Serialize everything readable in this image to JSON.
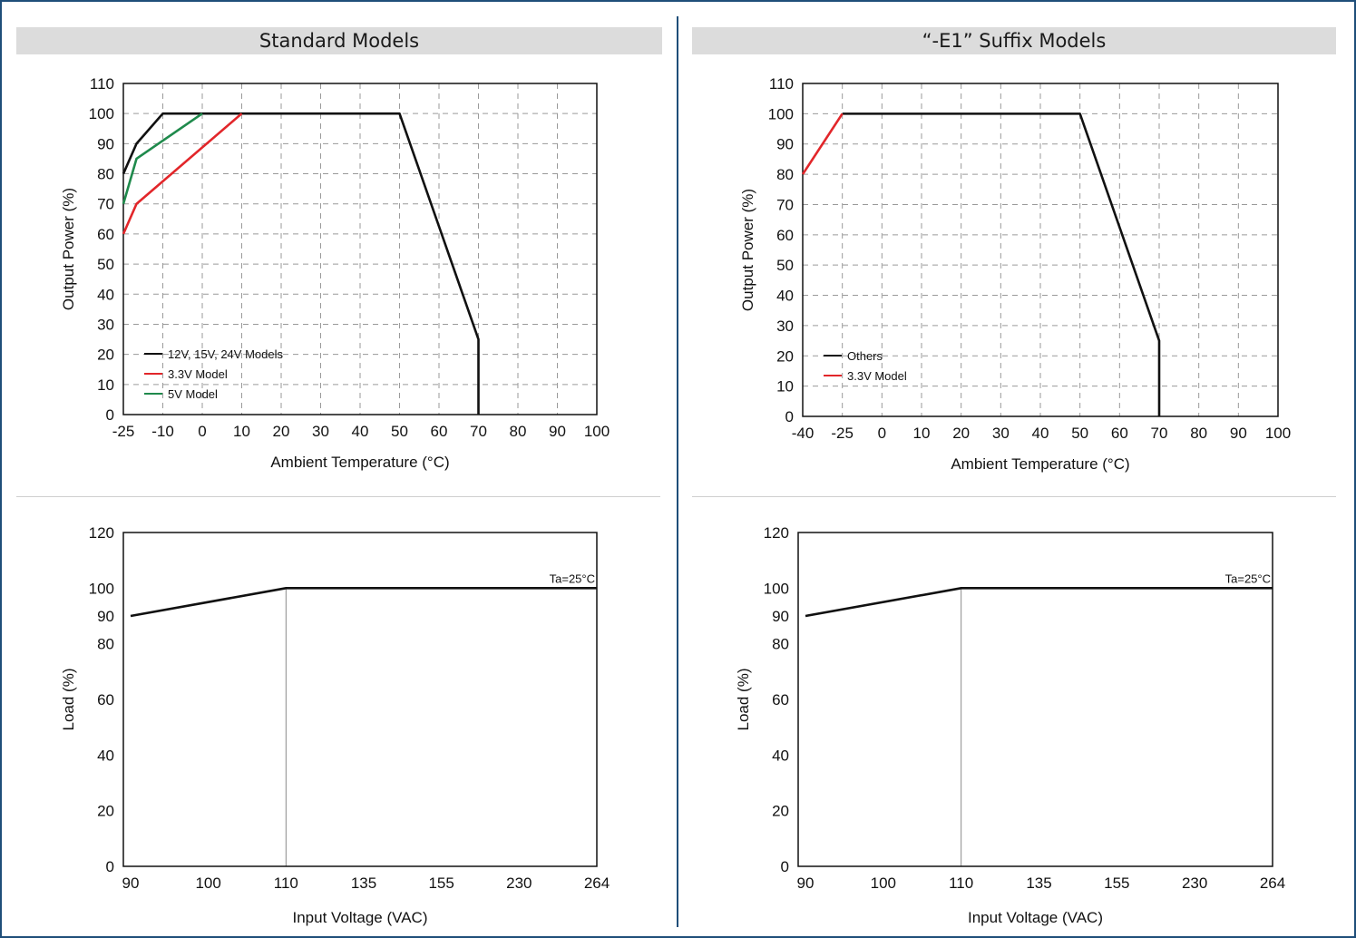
{
  "panels": {
    "left_title": "Standard Models",
    "right_title": "“-E1” Suffix Models"
  },
  "colors": {
    "black": "#111111",
    "red": "#e2262a",
    "green": "#1f8a4c",
    "frame": "#1f4e79",
    "grid": "#9a9a9a"
  },
  "chart_data": [
    {
      "type": "line",
      "title": "",
      "xlabel": "Ambient Temperature (°C)",
      "ylabel": "Output Power (%)",
      "x_ticks": [
        -25,
        -10,
        0,
        10,
        20,
        30,
        40,
        50,
        60,
        70,
        80,
        90,
        100
      ],
      "x_tick_labels": [
        "-25",
        "-10",
        "0",
        "10",
        "20",
        "30",
        "40",
        "50",
        "60",
        "70",
        "80",
        "90",
        "100"
      ],
      "y_ticks": [
        0,
        10,
        20,
        30,
        40,
        50,
        60,
        70,
        80,
        90,
        100,
        110
      ],
      "y_tick_labels": [
        "0",
        "10",
        "20",
        "30",
        "40",
        "50",
        "60",
        "70",
        "80",
        "90",
        "100",
        "110"
      ],
      "xlim": [
        -25,
        100
      ],
      "ylim": [
        0,
        110
      ],
      "grid": true,
      "legend_position": "bottom-left",
      "series": [
        {
          "name": "12V, 15V, 24V Models",
          "color": "#111111",
          "points": [
            [
              -25,
              80
            ],
            [
              -20,
              90
            ],
            [
              -10,
              100
            ],
            [
              50,
              100
            ],
            [
              70,
              25
            ],
            [
              70,
              0
            ]
          ]
        },
        {
          "name": "3.3V Model",
          "color": "#e2262a",
          "points": [
            [
              -25,
              60
            ],
            [
              -20,
              70
            ],
            [
              10,
              100
            ]
          ]
        },
        {
          "name": "5V Model",
          "color": "#1f8a4c",
          "points": [
            [
              -25,
              70
            ],
            [
              -20,
              85
            ],
            [
              0,
              100
            ]
          ]
        }
      ]
    },
    {
      "type": "line",
      "title": "",
      "xlabel": "Ambient Temperature (°C)",
      "ylabel": "Output Power (%)",
      "x_ticks": [
        -40,
        -25,
        0,
        10,
        20,
        30,
        40,
        50,
        60,
        70,
        80,
        90,
        100
      ],
      "x_tick_labels": [
        "-40",
        "-25",
        "0",
        "10",
        "20",
        "30",
        "40",
        "50",
        "60",
        "70",
        "80",
        "90",
        "100"
      ],
      "y_ticks": [
        0,
        10,
        20,
        30,
        40,
        50,
        60,
        70,
        80,
        90,
        100,
        110
      ],
      "y_tick_labels": [
        "0",
        "10",
        "20",
        "30",
        "40",
        "50",
        "60",
        "70",
        "80",
        "90",
        "100",
        "110"
      ],
      "xlim": [
        -40,
        100
      ],
      "ylim": [
        0,
        110
      ],
      "grid": true,
      "legend_position": "bottom-left",
      "series": [
        {
          "name": "Others",
          "color": "#111111",
          "points": [
            [
              -25,
              100
            ],
            [
              50,
              100
            ],
            [
              70,
              25
            ],
            [
              70,
              0
            ]
          ]
        },
        {
          "name": "3.3V Model",
          "color": "#e2262a",
          "points": [
            [
              -40,
              80
            ],
            [
              -25,
              100
            ]
          ]
        }
      ]
    },
    {
      "type": "line",
      "title": "",
      "xlabel": "Input Voltage (VAC)",
      "ylabel": "Load (%)",
      "x_ticks": [
        90,
        100,
        110,
        135,
        155,
        230,
        264
      ],
      "x_tick_labels": [
        "90",
        "100",
        "110",
        "135",
        "155",
        "230",
        "264"
      ],
      "y_ticks": [
        0,
        20,
        40,
        60,
        80,
        90,
        100,
        120
      ],
      "y_tick_labels": [
        "0",
        "20",
        "40",
        "60",
        "80",
        "90",
        "100",
        "120"
      ],
      "ylim": [
        0,
        120
      ],
      "grid": false,
      "annotation": "Ta=25°C",
      "marker_x": 110,
      "series": [
        {
          "color": "#111111",
          "points": [
            [
              90,
              90
            ],
            [
              110,
              100
            ],
            [
              264,
              100
            ]
          ]
        }
      ]
    },
    {
      "type": "line",
      "title": "",
      "xlabel": "Input Voltage (VAC)",
      "ylabel": "Load (%)",
      "x_ticks": [
        90,
        100,
        110,
        135,
        155,
        230,
        264
      ],
      "x_tick_labels": [
        "90",
        "100",
        "110",
        "135",
        "155",
        "230",
        "264"
      ],
      "y_ticks": [
        0,
        20,
        40,
        60,
        80,
        90,
        100,
        120
      ],
      "y_tick_labels": [
        "0",
        "20",
        "40",
        "60",
        "80",
        "90",
        "100",
        "120"
      ],
      "ylim": [
        0,
        120
      ],
      "grid": false,
      "annotation": "Ta=25°C",
      "marker_x": 110,
      "series": [
        {
          "color": "#111111",
          "points": [
            [
              90,
              90
            ],
            [
              110,
              100
            ],
            [
              264,
              100
            ]
          ]
        }
      ]
    }
  ]
}
